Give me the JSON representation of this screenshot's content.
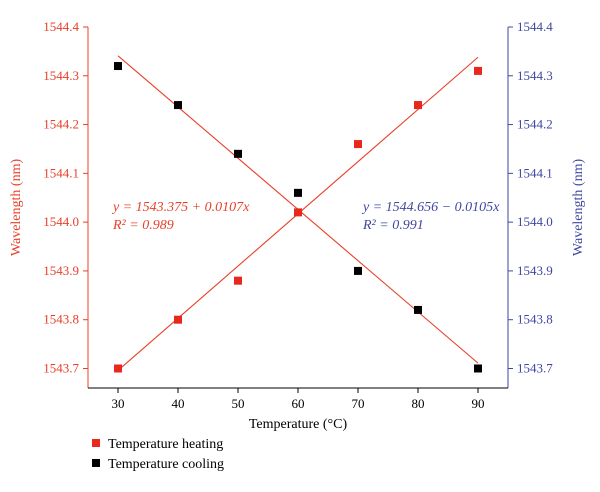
{
  "chart_data": {
    "type": "scatter",
    "xlabel": "Temperature (°C)",
    "ylabel_left": "Wavelength (nm)",
    "ylabel_right": "Wavelength (nm)",
    "xlim": [
      25,
      95
    ],
    "ylim": [
      1543.66,
      1544.4
    ],
    "x_ticks": [
      30,
      40,
      50,
      60,
      70,
      80,
      90
    ],
    "y_ticks": [
      1543.7,
      1543.8,
      1543.9,
      1544.0,
      1544.1,
      1544.2,
      1544.3,
      1544.4
    ],
    "x_tick_labels": [
      "30",
      "40",
      "50",
      "60",
      "70",
      "80",
      "90"
    ],
    "y_tick_labels": [
      "1543.7",
      "1543.8",
      "1543.9",
      "1544.0",
      "1544.1",
      "1544.2",
      "1544.3",
      "1544.4"
    ],
    "left_axis_color": "#e8402a",
    "right_axis_color": "#3f47a0",
    "grid": false,
    "legend_position": "bottom-left",
    "series": [
      {
        "name": "Temperature heating",
        "color": "#e8271d",
        "marker": "square",
        "x": [
          30,
          40,
          50,
          60,
          70,
          80,
          90
        ],
        "y": [
          1543.7,
          1543.8,
          1543.88,
          1544.02,
          1544.16,
          1544.24,
          1544.31
        ],
        "fit": {
          "intercept": 1543.375,
          "slope": 0.0107,
          "x_range": [
            30,
            90
          ],
          "color": "#e8402a"
        },
        "equation": "y = 1543.375 + 0.0107x",
        "r2": "R² = 0.989"
      },
      {
        "name": "Temperature cooling",
        "color": "#000000",
        "marker": "square",
        "x": [
          30,
          40,
          50,
          60,
          70,
          80,
          90
        ],
        "y": [
          1544.32,
          1544.24,
          1544.14,
          1544.06,
          1543.9,
          1543.82,
          1543.7
        ],
        "fit": {
          "intercept": 1544.656,
          "slope": -0.0105,
          "x_range": [
            30,
            90
          ],
          "color": "#e8402a"
        },
        "equation": "y = 1544.656 − 0.0105x",
        "r2": "R² = 0.991"
      }
    ]
  }
}
